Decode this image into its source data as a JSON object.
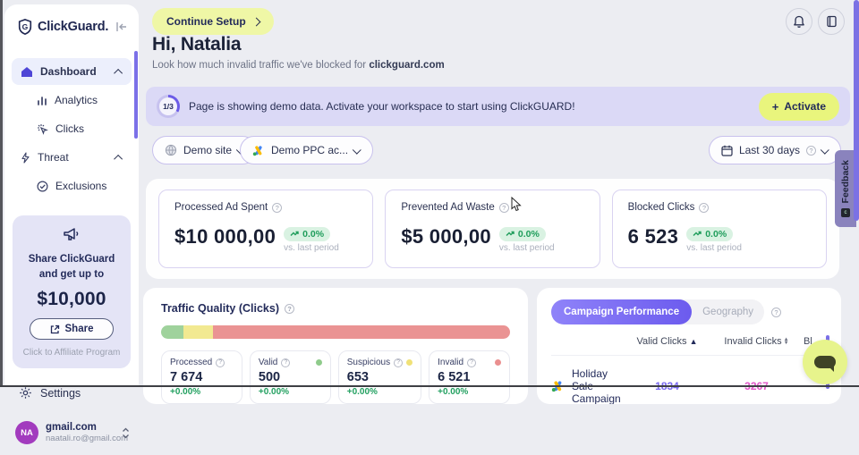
{
  "app": {
    "name": "ClickGuard."
  },
  "sidebar": {
    "nav": [
      {
        "label": "Dashboard"
      },
      {
        "label": "Analytics"
      },
      {
        "label": "Clicks"
      },
      {
        "label": "Threat"
      },
      {
        "label": "Exclusions"
      }
    ],
    "promo": {
      "title": "Share ClickGuard and get up to",
      "amount": "$10,000",
      "share_label": "Share",
      "caption": "Click to Affiliate Program"
    },
    "settings_label": "Settings",
    "account": {
      "initials": "NA",
      "name": "gmail.com",
      "email": "naatali.ro@gmail.com"
    }
  },
  "header": {
    "continue_setup": "Continue Setup",
    "greeting": "Hi, Natalia",
    "subtitle": "Look how much invalid traffic we've blocked for",
    "domain": "clickguard.com"
  },
  "banner": {
    "progress": "1/3",
    "message": "Page is showing demo data. Activate your workspace to start using ClickGUARD!",
    "activate_label": "Activate"
  },
  "filters": {
    "site": "Demo site",
    "ppc_account": "Demo PPC ac...",
    "date_range": "Last 30 days"
  },
  "kpis": [
    {
      "label": "Processed Ad Spent",
      "value": "$10 000,00",
      "change": "0.0%",
      "compare": "vs. last period"
    },
    {
      "label": "Prevented Ad Waste",
      "value": "$5 000,00",
      "change": "0.0%",
      "compare": "vs. last period"
    },
    {
      "label": "Blocked Clicks",
      "value": "6 523",
      "change": "0.0%",
      "compare": "vs. last period"
    }
  ],
  "traffic_quality": {
    "title": "Traffic Quality (Clicks)",
    "segments": [
      {
        "name": "valid",
        "pct": 6.5,
        "color": "#9FD29C"
      },
      {
        "name": "suspicious",
        "pct": 8.5,
        "color": "#F2E991"
      },
      {
        "name": "invalid",
        "pct": 85,
        "color": "#EA9393"
      }
    ],
    "cards": [
      {
        "label": "Processed",
        "value": "7 674",
        "change": "+0.00%",
        "dot": ""
      },
      {
        "label": "Valid",
        "value": "500",
        "change": "+0.00%",
        "dot": "#8FCB8B"
      },
      {
        "label": "Suspicious",
        "value": "653",
        "change": "+0.00%",
        "dot": "#F0E177"
      },
      {
        "label": "Invalid",
        "value": "6 521",
        "change": "+0.00%",
        "dot": "#EA8F8F"
      }
    ]
  },
  "campaigns": {
    "tabs": [
      {
        "label": "Campaign Performance"
      },
      {
        "label": "Geography"
      }
    ],
    "columns": {
      "valid": "Valid Clicks",
      "invalid": "Invalid Clicks",
      "blocked": "Bl"
    },
    "rows": [
      {
        "name": "Holiday Sale Campaign",
        "valid": "1834",
        "invalid": "3267"
      }
    ]
  },
  "feedback_label": "Feedback",
  "colors": {
    "accent_purple": "#6C5BEE",
    "accent_yellow": "#E9F57D",
    "banner_lavender": "#DBD9F6",
    "positive_green": "#1F9D5B",
    "valid_link": "#7A6AF0",
    "invalid_link": "#E157C9",
    "avatar_purple": "#A23BBE"
  }
}
